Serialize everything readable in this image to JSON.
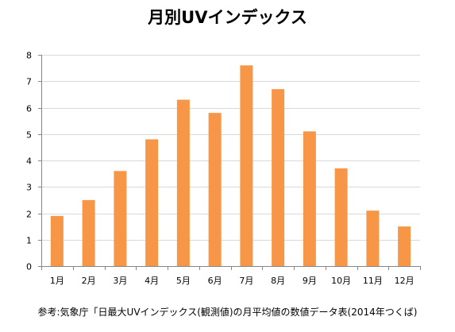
{
  "title": "月別UVインデックス",
  "source_note": "参考:気象庁「日最大UVインデックス(観測値)の月平均値の数値データ表(2014年つくば)",
  "chart_data": {
    "type": "bar",
    "categories": [
      "1月",
      "2月",
      "3月",
      "4月",
      "5月",
      "6月",
      "7月",
      "8月",
      "9月",
      "10月",
      "11月",
      "12月"
    ],
    "values": [
      1.9,
      2.5,
      3.6,
      4.8,
      6.3,
      5.8,
      7.6,
      6.7,
      5.1,
      3.7,
      2.1,
      1.5
    ],
    "ylim": [
      0,
      8
    ],
    "yticks": [
      "0",
      "1",
      "2",
      "3",
      "4",
      "5",
      "6",
      "7",
      "8"
    ],
    "grid": true,
    "legend": "none",
    "bar_color": "#F79646",
    "grid_color": "#D9D9D9",
    "axis_color": "#868686"
  }
}
